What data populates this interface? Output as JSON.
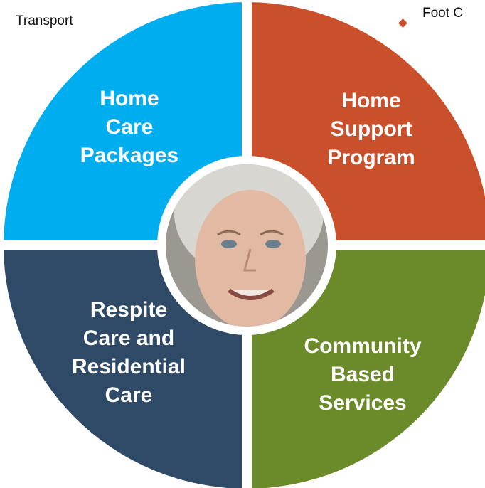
{
  "labels": {
    "left": "Transport",
    "right": "Foot C"
  },
  "segments": [
    {
      "lines": [
        "Home",
        "Care",
        "Packages"
      ]
    },
    {
      "lines": [
        "Home",
        "Support",
        "Program"
      ]
    },
    {
      "lines": [
        "Respite",
        "Care and",
        "Residential",
        "Care"
      ]
    },
    {
      "lines": [
        "Community",
        "Based",
        "Services"
      ]
    }
  ]
}
